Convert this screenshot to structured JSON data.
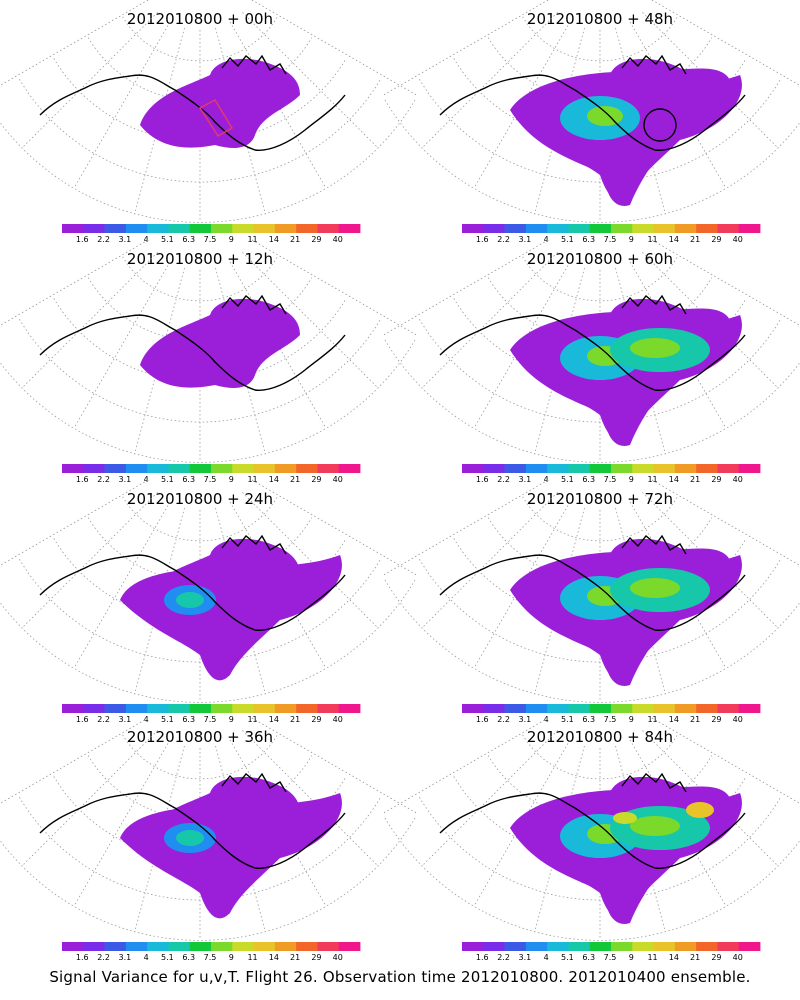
{
  "caption": "Signal Variance for u,v,T. Flight 26. Observation time 2012010800. 2012010400 ensemble.",
  "colorbar": {
    "labels": [
      "1.6",
      "2.2",
      "3.1",
      "4",
      "5.1",
      "6.3",
      "7.5",
      "9",
      "11",
      "14",
      "21",
      "29",
      "40"
    ],
    "colors": [
      "#9b1fd8",
      "#7a2de8",
      "#3c5ae6",
      "#1f8ef0",
      "#19b9d9",
      "#17c7a9",
      "#12c83a",
      "#7ad92a",
      "#c8db2b",
      "#e8c42a",
      "#f09b24",
      "#f2662a",
      "#f23a5a",
      "#f0168c"
    ]
  },
  "panels": [
    {
      "title": "2012010800 + 00h",
      "level": 1,
      "circle": false,
      "redbox": true
    },
    {
      "title": "2012010800 + 48h",
      "level": 3,
      "circle": true,
      "redbox": false
    },
    {
      "title": "2012010800 + 12h",
      "level": 1,
      "circle": false,
      "redbox": false
    },
    {
      "title": "2012010800 + 60h",
      "level": 4,
      "circle": false,
      "redbox": false
    },
    {
      "title": "2012010800 + 24h",
      "level": 2,
      "circle": false,
      "redbox": false
    },
    {
      "title": "2012010800 + 72h",
      "level": 4,
      "circle": false,
      "redbox": false
    },
    {
      "title": "2012010800 + 36h",
      "level": 2,
      "circle": false,
      "redbox": false
    },
    {
      "title": "2012010800 + 84h",
      "level": 5,
      "circle": false,
      "redbox": false
    }
  ]
}
